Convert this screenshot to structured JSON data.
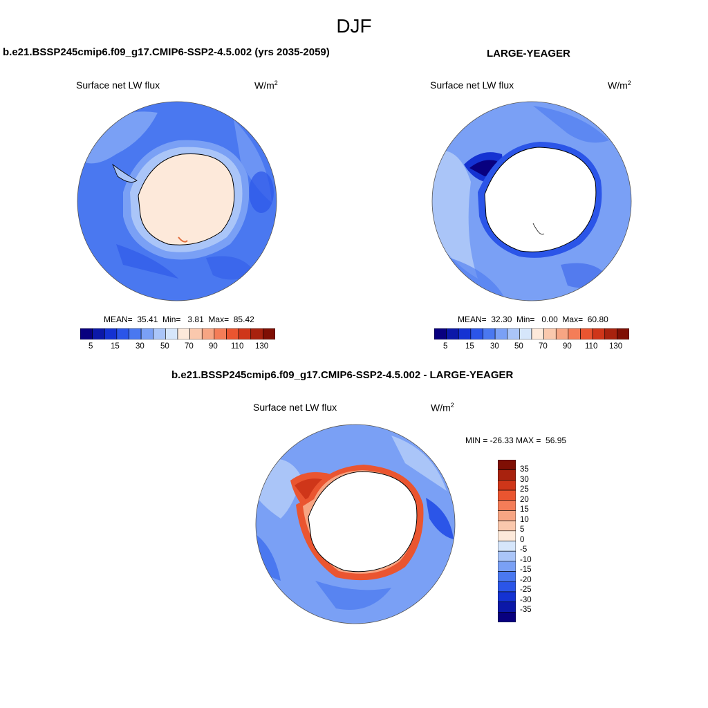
{
  "figure": {
    "title": "DJF",
    "scale_colors": [
      "#08007f",
      "#0b18a8",
      "#1432d2",
      "#2b55e8",
      "#4a78f0",
      "#7aa0f5",
      "#aac5f8",
      "#d6e6fb",
      "#fde9da",
      "#fac8ad",
      "#f7a583",
      "#f47d58",
      "#ea5530",
      "#cf3619",
      "#a8220e",
      "#7f0f04"
    ]
  },
  "panels": {
    "model": {
      "header": "b.e21.BSSP245cmip6.f09_g17.CMIP6-SSP2-4.5.002 (yrs 2035-2059)",
      "variable": "Surface net LW flux",
      "units": "W/m",
      "units_sup": "2",
      "stats": "MEAN=  35.41  Min=   3.81  Max=  85.42",
      "ticks": [
        "5",
        "15",
        "30",
        "50",
        "70",
        "90",
        "110",
        "130"
      ]
    },
    "obs": {
      "header": "LARGE-YEAGER",
      "variable": "Surface net LW flux",
      "units": "W/m",
      "units_sup": "2",
      "stats": "MEAN=  32.30  Min=   0.00  Max=  60.80",
      "ticks": [
        "5",
        "15",
        "30",
        "50",
        "70",
        "90",
        "110",
        "130"
      ]
    },
    "diff": {
      "header": "b.e21.BSSP245cmip6.f09_g17.CMIP6-SSP2-4.5.002 - LARGE-YEAGER",
      "variable": "Surface net LW flux",
      "units": "W/m",
      "units_sup": "2",
      "stats": "MIN = -26.33 MAX =  56.95",
      "ticks": [
        "35",
        "30",
        "25",
        "20",
        "15",
        "10",
        "5",
        "0",
        "-5",
        "-10",
        "-15",
        "-20",
        "-25",
        "-30",
        "-35"
      ]
    }
  }
}
